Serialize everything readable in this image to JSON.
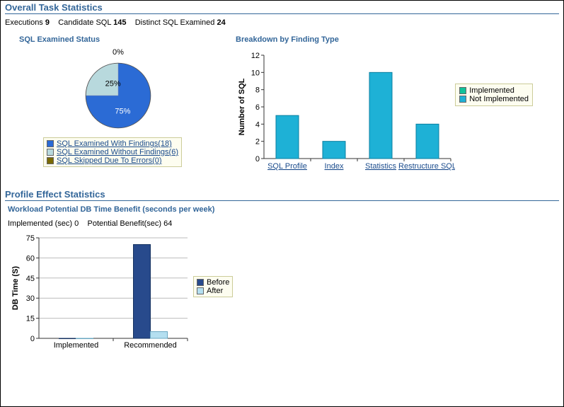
{
  "overall": {
    "title": "Overall Task Statistics",
    "summary": {
      "executions_label": "Executions",
      "executions": "9",
      "candidate_label": "Candidate SQL",
      "candidate": "145",
      "distinct_label": "Distinct SQL Examined",
      "distinct": "24"
    },
    "pie": {
      "title": "SQL Examined Status",
      "label_zero": "0%",
      "label_25": "25%",
      "label_75": "75%",
      "colors": {
        "with": "#2b6bd5",
        "without": "#b8d9dd",
        "errors": "#7a6a00"
      },
      "legend": [
        {
          "color": "#2b6bd5",
          "text": "SQL Examined With Findings(18)"
        },
        {
          "color": "#b8d9dd",
          "text": "SQL Examined Without Findings(6)"
        },
        {
          "color": "#7a6a00",
          "text": "SQL Skipped Due To Errors(0)"
        }
      ]
    },
    "bar": {
      "title": "Breakdown by Finding Type",
      "y_label": "Number of SQL",
      "categories": [
        "SQL Profile",
        "Index",
        "Statistics",
        "Restructure SQL"
      ],
      "values": [
        5,
        2,
        10,
        4
      ],
      "ylim": [
        0,
        12
      ],
      "ytick_step": 2,
      "bar_color": "#1eb1d6",
      "axis_color": "#333333",
      "grid_color": "#bbbbbb",
      "legend": [
        {
          "color": "#10c29a",
          "text": "Implemented"
        },
        {
          "color": "#1eb1d6",
          "text": "Not Implemented"
        }
      ]
    }
  },
  "profile": {
    "title": "Profile Effect Statistics",
    "sub_title": "Workload Potential DB Time Benefit (seconds per week)",
    "summary": {
      "impl_label": "Implemented (sec)",
      "impl": "0",
      "pot_label": "Potential Benefit(sec)",
      "pot": "64"
    },
    "chart": {
      "y_label": "DB Time (S)",
      "categories": [
        "Implemented",
        "Recommended"
      ],
      "series": {
        "before": {
          "color": "#284a8c",
          "values": [
            0,
            70
          ]
        },
        "after": {
          "color": "#b4dff0",
          "values": [
            0,
            5
          ]
        }
      },
      "ylim": [
        0,
        75
      ],
      "ytick_step": 15,
      "axis_color": "#333333",
      "grid_color": "#bbbbbb",
      "legend": [
        {
          "color": "#284a8c",
          "text": "Before"
        },
        {
          "color": "#b4dff0",
          "text": "After"
        }
      ]
    }
  }
}
